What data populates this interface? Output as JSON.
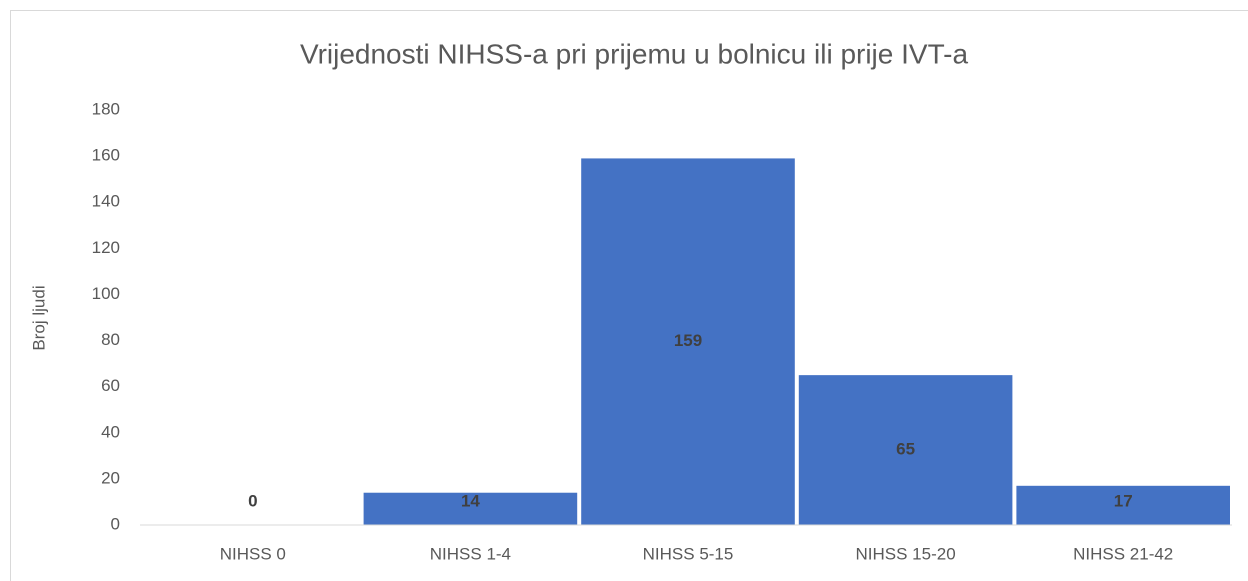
{
  "chart_data": {
    "type": "bar",
    "title": "Vrijednosti NIHSS-a pri prijemu u bolnicu ili prije IVT-a",
    "y_label": "Broj ljudi",
    "categories": [
      "NIHSS 0",
      "NIHSS 1-4",
      "NIHSS 5-15",
      "NIHSS 15-20",
      "NIHSS 21-42"
    ],
    "values": [
      0,
      14,
      159,
      65,
      17
    ],
    "color": "#4472c4",
    "ylim": [
      0,
      180
    ],
    "yticks": [
      0,
      20,
      40,
      60,
      80,
      100,
      120,
      140,
      160,
      180
    ],
    "grid": false
  }
}
